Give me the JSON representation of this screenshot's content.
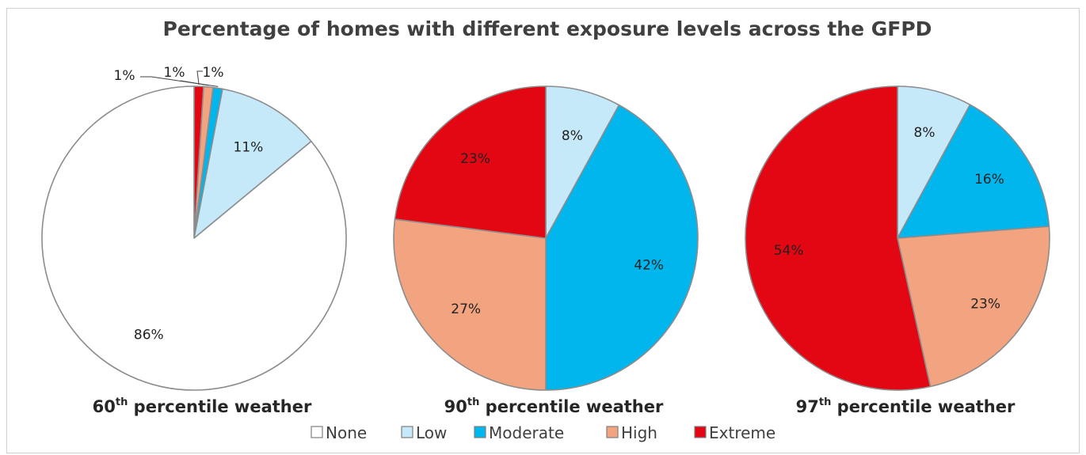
{
  "chart_data": {
    "type": "pie",
    "title": "Percentage of homes with different exposure levels across the GFPD",
    "legend": {
      "position": "bottom",
      "entries": [
        {
          "name": "None",
          "color": "#ffffff"
        },
        {
          "name": "Low",
          "color": "#c5e9f9"
        },
        {
          "name": "Moderate",
          "color": "#00b6ec"
        },
        {
          "name": "High",
          "color": "#f2a37f"
        },
        {
          "name": "Extreme",
          "color": "#e30613"
        }
      ]
    },
    "pies": [
      {
        "caption_prefix": "60",
        "caption_sup": "th",
        "caption_suffix": " percentile weather",
        "slices": [
          {
            "category": "Extreme",
            "value": 1,
            "label": "1%"
          },
          {
            "category": "High",
            "value": 1,
            "label": "1%"
          },
          {
            "category": "Moderate",
            "value": 1,
            "label": "1%"
          },
          {
            "category": "Low",
            "value": 11,
            "label": "11%"
          },
          {
            "category": "None",
            "value": 86,
            "label": "86%"
          }
        ]
      },
      {
        "caption_prefix": "90",
        "caption_sup": "th",
        "caption_suffix": " percentile weather",
        "slices": [
          {
            "category": "Low",
            "value": 8,
            "label": "8%"
          },
          {
            "category": "Moderate",
            "value": 42,
            "label": "42%"
          },
          {
            "category": "High",
            "value": 27,
            "label": "27%"
          },
          {
            "category": "Extreme",
            "value": 23,
            "label": "23%"
          }
        ]
      },
      {
        "caption_prefix": "97",
        "caption_sup": "th",
        "caption_suffix": " percentile weather",
        "slices": [
          {
            "category": "Low",
            "value": 8,
            "label": "8%"
          },
          {
            "category": "Moderate",
            "value": 16,
            "label": "16%"
          },
          {
            "category": "High",
            "value": 23,
            "label": "23%"
          },
          {
            "category": "Extreme",
            "value": 54,
            "label": "54%"
          }
        ]
      }
    ]
  }
}
